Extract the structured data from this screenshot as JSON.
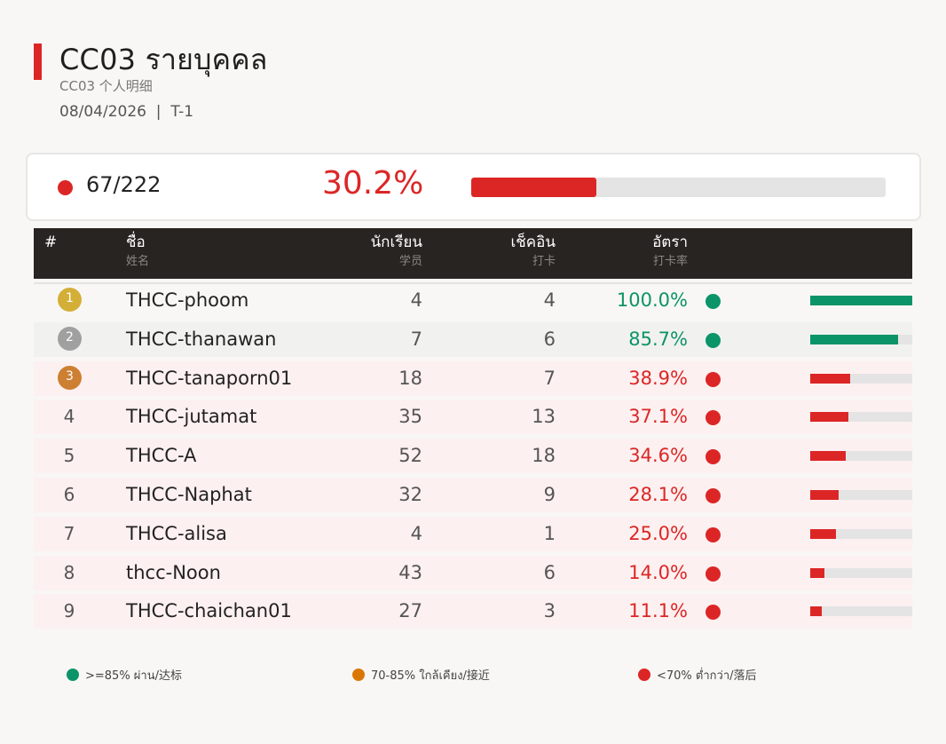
{
  "header": {
    "title": "CC03  รายบุคคล",
    "subtitle": "CC03  个人明细",
    "date": "08/04/2026",
    "separator": "|",
    "period": "T-1"
  },
  "summary": {
    "count": "67/222",
    "percent": "30.2%",
    "progress": 30.2,
    "status_color": "#dc2626"
  },
  "columns": {
    "rank": {
      "label": "#",
      "sub": ""
    },
    "name": {
      "label": "ชื่อ",
      "sub": "姓名"
    },
    "students": {
      "label": "นักเรียน",
      "sub": "学员"
    },
    "checkins": {
      "label": "เช็คอิน",
      "sub": "打卡"
    },
    "rate": {
      "label": "อัตรา",
      "sub": "打卡率"
    }
  },
  "colors": {
    "green": "#0b9468",
    "orange": "#d97706",
    "red": "#dc2626",
    "gold": "#d4af37",
    "silver": "#a0a0a0",
    "bronze": "#cd7f32"
  },
  "rows": [
    {
      "rank": "1",
      "name": "THCC-phoom",
      "students": "4",
      "checkins": "4",
      "rate": "100.0%",
      "value": 100.0,
      "status": "green"
    },
    {
      "rank": "2",
      "name": "THCC-thanawan",
      "students": "7",
      "checkins": "6",
      "rate": "85.7%",
      "value": 85.7,
      "status": "green"
    },
    {
      "rank": "3",
      "name": "THCC-tanaporn01",
      "students": "18",
      "checkins": "7",
      "rate": "38.9%",
      "value": 38.9,
      "status": "red"
    },
    {
      "rank": "4",
      "name": "THCC-jutamat",
      "students": "35",
      "checkins": "13",
      "rate": "37.1%",
      "value": 37.1,
      "status": "red"
    },
    {
      "rank": "5",
      "name": "THCC-A",
      "students": "52",
      "checkins": "18",
      "rate": "34.6%",
      "value": 34.6,
      "status": "red"
    },
    {
      "rank": "6",
      "name": "THCC-Naphat",
      "students": "32",
      "checkins": "9",
      "rate": "28.1%",
      "value": 28.1,
      "status": "red"
    },
    {
      "rank": "7",
      "name": "THCC-alisa",
      "students": "4",
      "checkins": "1",
      "rate": "25.0%",
      "value": 25.0,
      "status": "red"
    },
    {
      "rank": "8",
      "name": "thcc-Noon",
      "students": "43",
      "checkins": "6",
      "rate": "14.0%",
      "value": 14.0,
      "status": "red"
    },
    {
      "rank": "9",
      "name": "THCC-chaichan01",
      "students": "27",
      "checkins": "3",
      "rate": "11.1%",
      "value": 11.1,
      "status": "red"
    }
  ],
  "legend": [
    {
      "label": ">=85% ผ่าน/达标",
      "color": "#0b9468"
    },
    {
      "label": "70-85% ใกล้เคียง/接近",
      "color": "#d97706"
    },
    {
      "label": "<70% ต่ำกว่า/落后",
      "color": "#dc2626"
    }
  ]
}
